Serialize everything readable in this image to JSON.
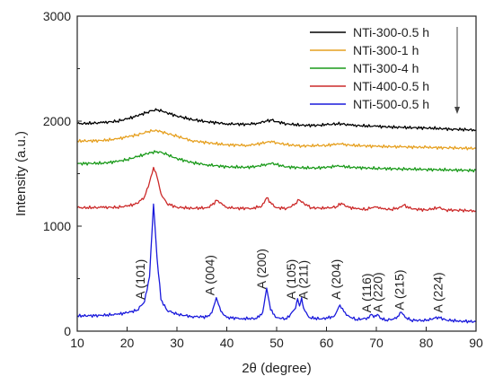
{
  "chart_data": {
    "type": "line",
    "xlabel": "2θ (degree)",
    "ylabel": "Intensity (a.u.)",
    "xlim": [
      10,
      90
    ],
    "ylim": [
      0,
      3000
    ],
    "xticks": [
      10,
      20,
      30,
      40,
      50,
      60,
      70,
      80,
      90
    ],
    "yticks": [
      0,
      1000,
      2000,
      3000
    ],
    "legend_position": "top-right",
    "legend_arrow": "down",
    "series": [
      {
        "name": "NTi-300-0.5 h",
        "color": "#000000",
        "x": [
          10,
          15,
          18,
          20,
          22,
          24,
          25,
          26,
          27,
          28,
          30,
          33,
          36,
          40,
          44,
          46,
          48,
          49,
          50,
          52,
          55,
          58,
          60,
          62,
          63,
          65,
          70,
          75,
          80,
          85,
          90
        ],
        "y": [
          1975,
          1985,
          2000,
          2020,
          2050,
          2085,
          2100,
          2105,
          2095,
          2080,
          2050,
          2015,
          1995,
          1975,
          1970,
          1980,
          2000,
          2010,
          1995,
          1975,
          1960,
          1960,
          1965,
          1975,
          1975,
          1960,
          1950,
          1940,
          1935,
          1925,
          1915
        ]
      },
      {
        "name": "NTi-300-1 h",
        "color": "#e6a020",
        "x": [
          10,
          15,
          18,
          20,
          22,
          24,
          25,
          26,
          27,
          28,
          30,
          33,
          36,
          40,
          44,
          46,
          48,
          49,
          50,
          52,
          55,
          58,
          60,
          62,
          63,
          65,
          70,
          75,
          80,
          85,
          90
        ],
        "y": [
          1810,
          1815,
          1830,
          1850,
          1870,
          1895,
          1905,
          1910,
          1900,
          1885,
          1855,
          1815,
          1795,
          1775,
          1770,
          1780,
          1800,
          1810,
          1795,
          1775,
          1765,
          1765,
          1770,
          1780,
          1780,
          1770,
          1760,
          1755,
          1750,
          1745,
          1740
        ]
      },
      {
        "name": "NTi-300-4 h",
        "color": "#1a9a1a",
        "x": [
          10,
          15,
          18,
          20,
          22,
          24,
          25,
          26,
          27,
          28,
          30,
          33,
          36,
          40,
          44,
          46,
          48,
          49,
          50,
          52,
          55,
          58,
          60,
          62,
          63,
          65,
          70,
          75,
          80,
          85,
          90
        ],
        "y": [
          1595,
          1600,
          1615,
          1635,
          1660,
          1690,
          1705,
          1710,
          1700,
          1680,
          1645,
          1605,
          1585,
          1565,
          1560,
          1570,
          1590,
          1600,
          1585,
          1565,
          1555,
          1555,
          1560,
          1570,
          1570,
          1560,
          1550,
          1545,
          1540,
          1535,
          1530
        ]
      },
      {
        "name": "NTi-400-0.5 h",
        "color": "#cc2a2a",
        "x": [
          10,
          15,
          18,
          20,
          22,
          23.5,
          24.5,
          25.3,
          26,
          26.8,
          28,
          30,
          33,
          36,
          37,
          38,
          39,
          40,
          42,
          45,
          47,
          48,
          49,
          50,
          52,
          53.5,
          54.5,
          55.5,
          57,
          60,
          62,
          63,
          64,
          66,
          68,
          69,
          70,
          71,
          73,
          74.5,
          75.5,
          77,
          80,
          82.5,
          84,
          87,
          90
        ],
        "y": [
          1175,
          1178,
          1180,
          1190,
          1215,
          1280,
          1420,
          1560,
          1470,
          1310,
          1215,
          1180,
          1170,
          1175,
          1200,
          1245,
          1215,
          1180,
          1170,
          1170,
          1190,
          1270,
          1210,
          1175,
          1170,
          1200,
          1250,
          1215,
          1175,
          1170,
          1185,
          1220,
          1185,
          1165,
          1160,
          1175,
          1180,
          1165,
          1160,
          1175,
          1200,
          1165,
          1155,
          1175,
          1155,
          1150,
          1145
        ]
      },
      {
        "name": "NTi-500-0.5 h",
        "color": "#1a1adc",
        "x": [
          10,
          15,
          18,
          20,
          22,
          23.5,
          24.5,
          25.3,
          26,
          26.8,
          28,
          30,
          33,
          36,
          37,
          37.9,
          38.8,
          40,
          43,
          46,
          47.2,
          48,
          48.8,
          50,
          52,
          53.8,
          54.2,
          54.6,
          55,
          55.4,
          56.5,
          59,
          61.5,
          62.7,
          64,
          66,
          68.5,
          69,
          69.5,
          70.2,
          70.8,
          72,
          74,
          75,
          75.8,
          77,
          80,
          82.5,
          84,
          87,
          90
        ],
        "y": [
          145,
          150,
          160,
          175,
          200,
          280,
          520,
          1210,
          700,
          300,
          200,
          160,
          140,
          135,
          175,
          320,
          190,
          130,
          120,
          120,
          180,
          410,
          200,
          130,
          115,
          220,
          310,
          240,
          320,
          220,
          130,
          115,
          140,
          250,
          150,
          110,
          125,
          160,
          130,
          160,
          120,
          105,
          120,
          180,
          130,
          105,
          100,
          135,
          105,
          95,
          90
        ]
      }
    ],
    "annotations": [
      {
        "text": "A (101)",
        "x": 23.5,
        "y": 300
      },
      {
        "text": "A (004)",
        "x": 37.5,
        "y": 340
      },
      {
        "text": "A (200)",
        "x": 47.8,
        "y": 400
      },
      {
        "text": "A (105)",
        "x": 53.8,
        "y": 300
      },
      {
        "text": "A (211)",
        "x": 56.2,
        "y": 300
      },
      {
        "text": "A (204)",
        "x": 62.8,
        "y": 300
      },
      {
        "text": "A (116)",
        "x": 68.9,
        "y": 175
      },
      {
        "text": "A (220)",
        "x": 71.2,
        "y": 175
      },
      {
        "text": "A (215)",
        "x": 75.5,
        "y": 200
      },
      {
        "text": "A (224)",
        "x": 83.2,
        "y": 175
      }
    ]
  }
}
